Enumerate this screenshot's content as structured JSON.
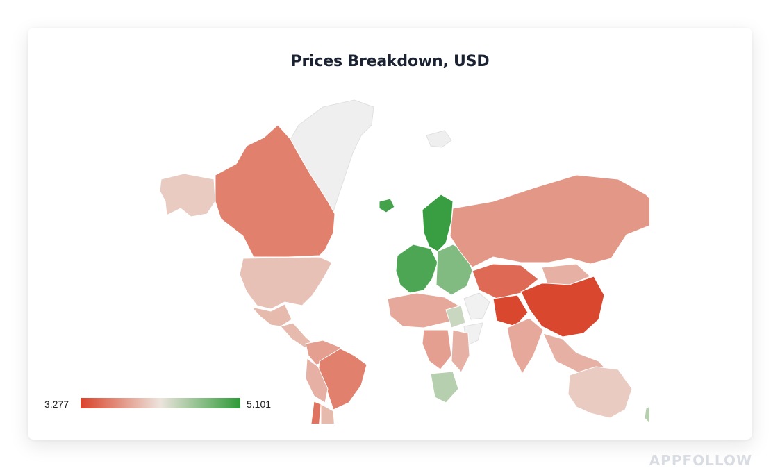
{
  "card": {
    "title": "Prices Breakdown, USD"
  },
  "chart_data": {
    "type": "choropleth",
    "title": "Prices Breakdown, USD",
    "color_scale": {
      "min": 3.277,
      "max": 5.101,
      "min_label": "3.277",
      "max_label": "5.101",
      "min_color": "#d9432a",
      "mid_color": "#ece4dd",
      "max_color": "#2e9a38"
    },
    "regions": [
      {
        "name": "Alaska",
        "value": 4.05
      },
      {
        "name": "Canada",
        "value": 3.62
      },
      {
        "name": "United States",
        "value": 3.99
      },
      {
        "name": "Mexico",
        "value": 3.95
      },
      {
        "name": "Central America",
        "value": 3.95
      },
      {
        "name": "Colombia / Venezuela",
        "value": 3.8
      },
      {
        "name": "Brazil",
        "value": 3.62
      },
      {
        "name": "Peru / Bolivia",
        "value": 3.9
      },
      {
        "name": "Chile",
        "value": 3.55
      },
      {
        "name": "Argentina",
        "value": 3.95
      },
      {
        "name": "Western Europe",
        "value": 4.95
      },
      {
        "name": "Scandinavia",
        "value": 5.05
      },
      {
        "name": "Eastern Europe",
        "value": 4.7
      },
      {
        "name": "Iceland",
        "value": 5.0
      },
      {
        "name": "Russia",
        "value": 3.75
      },
      {
        "name": "Central Asia",
        "value": 3.5
      },
      {
        "name": "Pakistan",
        "value": 3.3
      },
      {
        "name": "China",
        "value": 3.3
      },
      {
        "name": "India",
        "value": 3.85
      },
      {
        "name": "Mongolia",
        "value": 3.9
      },
      {
        "name": "Southeast Asia",
        "value": 3.9
      },
      {
        "name": "Australia",
        "value": 4.05
      },
      {
        "name": "New Zealand",
        "value": 4.45
      },
      {
        "name": "North Africa",
        "value": 3.85
      },
      {
        "name": "Egypt",
        "value": 4.35
      },
      {
        "name": "East Africa",
        "value": 3.9
      },
      {
        "name": "Central Africa",
        "value": 3.8
      },
      {
        "name": "South Africa",
        "value": 4.45
      }
    ],
    "no_data_regions": [
      "Greenland",
      "Svalbard",
      "Middle East",
      "Horn of Africa",
      "Congo"
    ]
  },
  "watermark": "APPFOLLOW"
}
